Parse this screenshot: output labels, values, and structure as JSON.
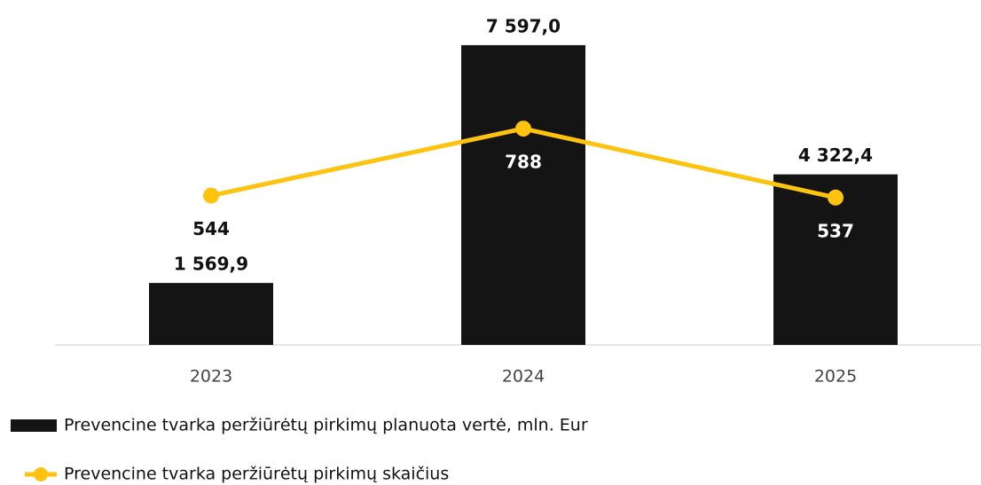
{
  "chart_data": {
    "type": "bar_line",
    "categories": [
      "2023",
      "2024",
      "2025"
    ],
    "ylim": [
      0,
      8000
    ],
    "y2lim": [
      0,
      1150
    ],
    "series": [
      {
        "name": "Prevencine tvarka peržiūrėtų pirkimų planuota vertė, mln. Eur",
        "type": "bar",
        "color": "#141414",
        "values": [
          1569.9,
          7597.0,
          4322.4
        ],
        "value_labels": [
          "1 569,9",
          "7 597,0",
          "4 322,4"
        ]
      },
      {
        "name": "Prevencine tvarka peržiūrėtų pirkimų skaičius",
        "type": "line",
        "axis": "y2",
        "color": "#fdc30f",
        "values": [
          544,
          788,
          537
        ]
      }
    ]
  }
}
